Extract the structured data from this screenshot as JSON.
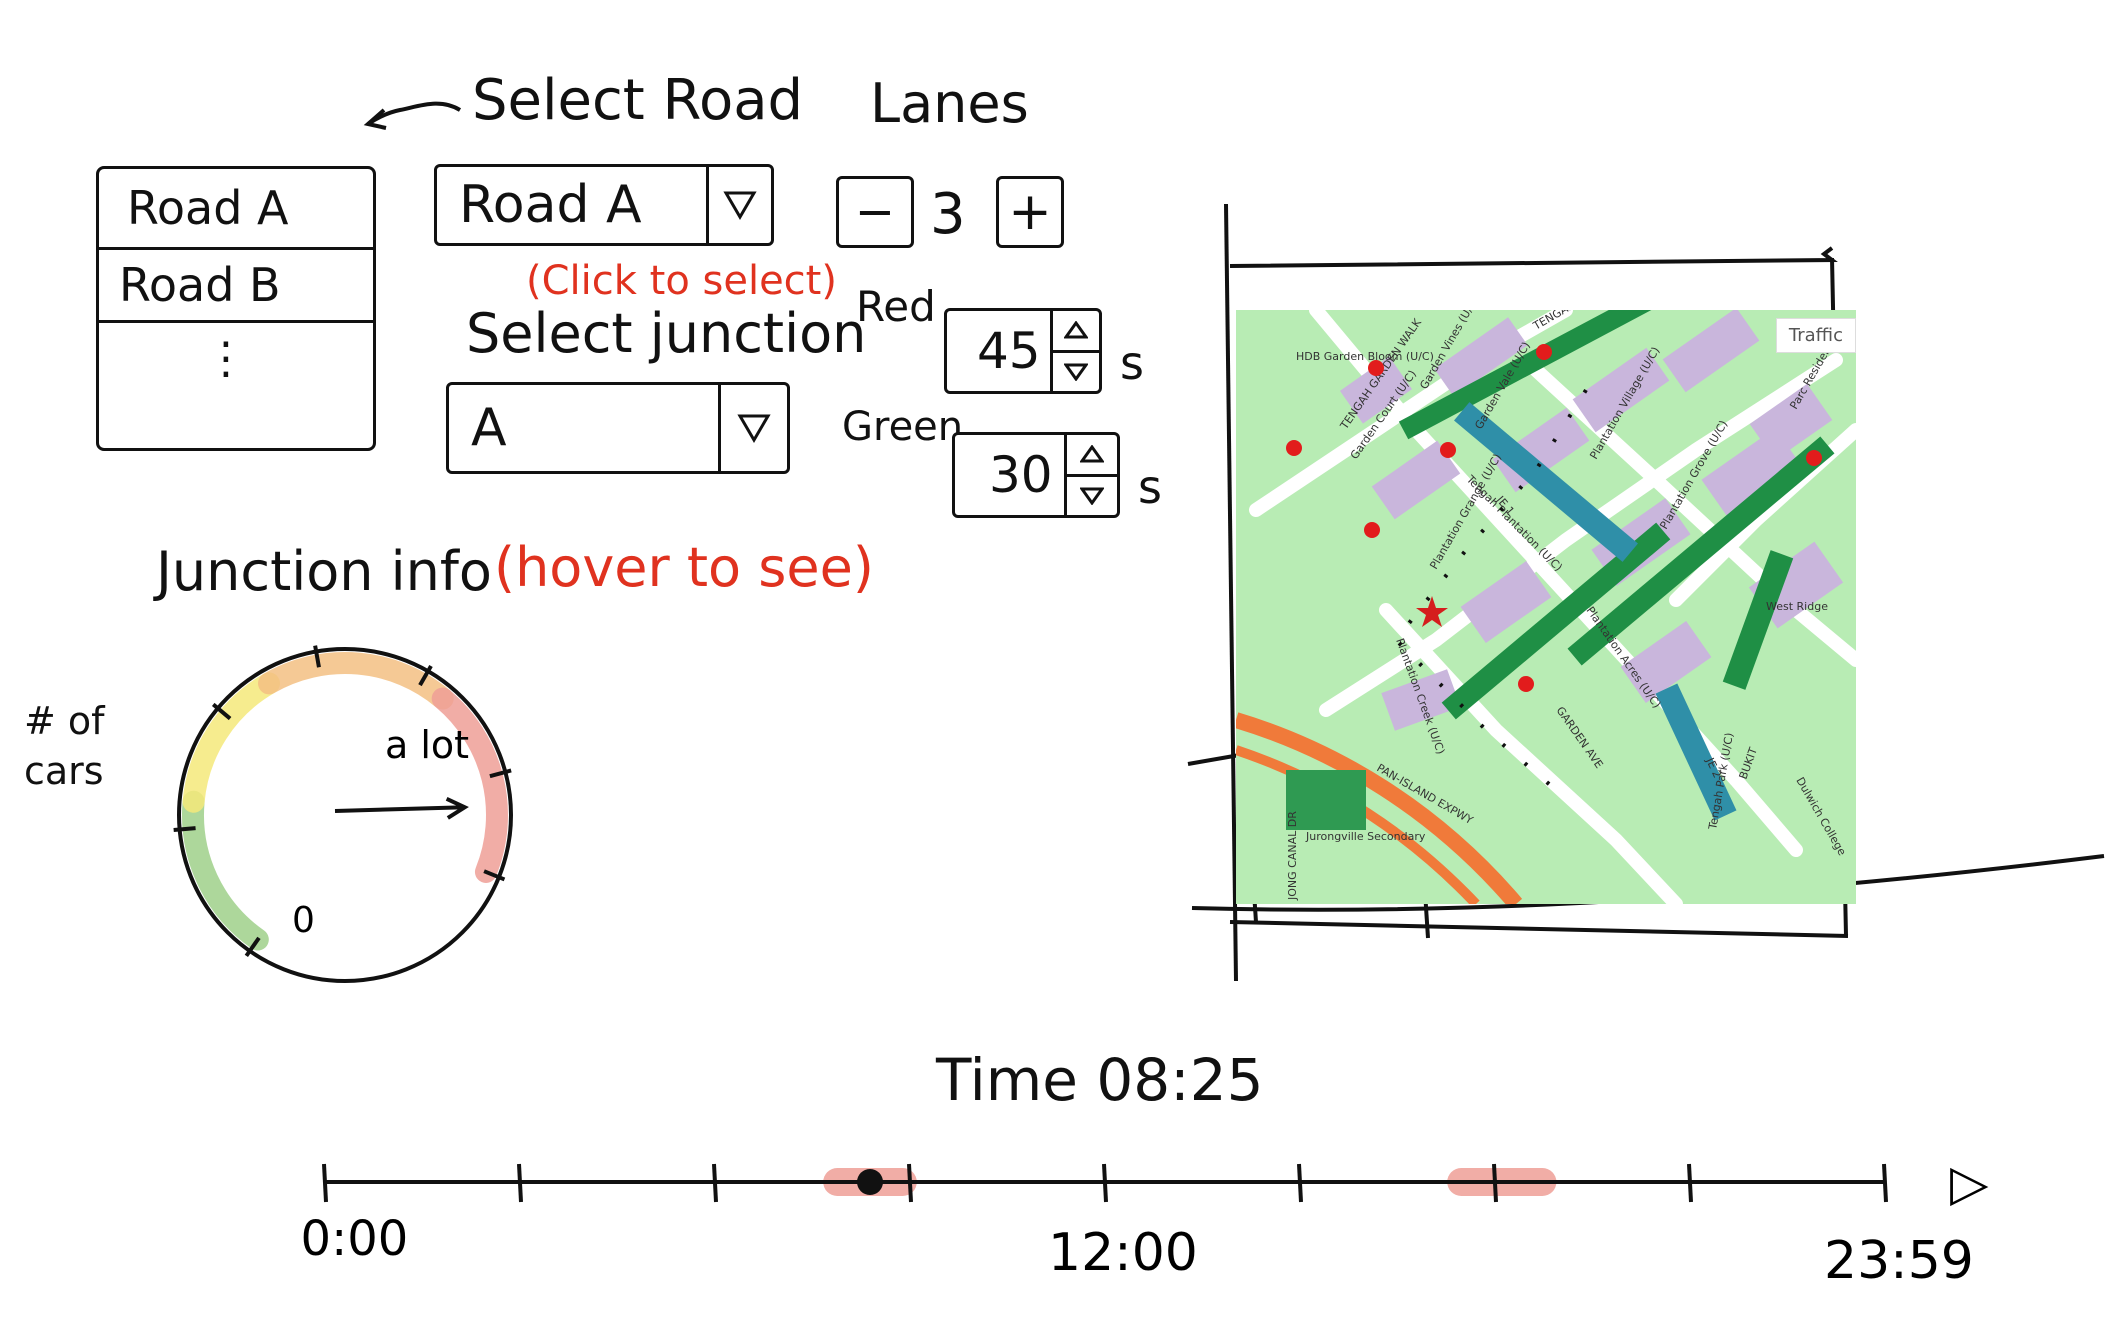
{
  "road_panel": {
    "back_arrow_label": "Select Road",
    "list_items": [
      "Road A",
      "Road B"
    ],
    "list_more": "⋮",
    "road_select": {
      "value": "Road A",
      "hint": "(Click to select)"
    },
    "junction_title": "Select junction",
    "junction_select": {
      "value": "A"
    }
  },
  "lanes": {
    "title": "Lanes",
    "minus": "−",
    "value": "3",
    "plus": "+"
  },
  "signals": {
    "red": {
      "label": "Red",
      "value": "45",
      "unit": "s"
    },
    "green": {
      "label": "Green",
      "value": "30",
      "unit": "s"
    }
  },
  "junction_info": {
    "label": "Junction info",
    "hint": "(hover to see)"
  },
  "gauge": {
    "title_line1": "# of",
    "title_line2": "cars",
    "label_max": "a lot",
    "label_min": "0",
    "level": 0.9,
    "colors": {
      "low": "#9fd08a",
      "mid": "#f4e97a",
      "high": "#f3c083",
      "max": "#ef9f96"
    }
  },
  "map": {
    "layer_button": "Traffic",
    "labels": [
      "HDB Garden Bloom (U/C)",
      "TENGAH GARDEN WALK",
      "Garden Vines (U/C)",
      "TENGAH",
      "Garden Court (U/C)",
      "Garden Vale (U/C)",
      "Plantation Village (U/C)",
      "Parc Residences",
      "Plantation Grove (U/C)",
      "Tengah Plantation (U/C)",
      "Plantation Grange (U/C)",
      "Plantation Acres (U/C)",
      "West Ridge",
      "Plantation Creek (U/C)",
      "GARDEN AVE",
      "PAN-ISLAND EXPWY",
      "Jurongville Secondary",
      "JONG CANAL DR",
      "Tengah Park (U/C)",
      "Dulwich College",
      "BUKIT",
      "JE 1",
      "JE 2"
    ],
    "colors": {
      "park": "#b8ecb4",
      "green_strip": "#1f8f45",
      "building": "#c9b6dc",
      "road": "#ffffff",
      "expressway": "#f07a3a",
      "junction": "#e21c1c"
    }
  },
  "timeline": {
    "title": "Time 08:25",
    "label_start": "00:00",
    "label_mid": "12:00",
    "label_end": "23:59",
    "current": 0.35,
    "busy_ranges": [
      [
        0.32,
        0.38
      ],
      [
        0.72,
        0.79
      ]
    ],
    "play": "▷"
  }
}
